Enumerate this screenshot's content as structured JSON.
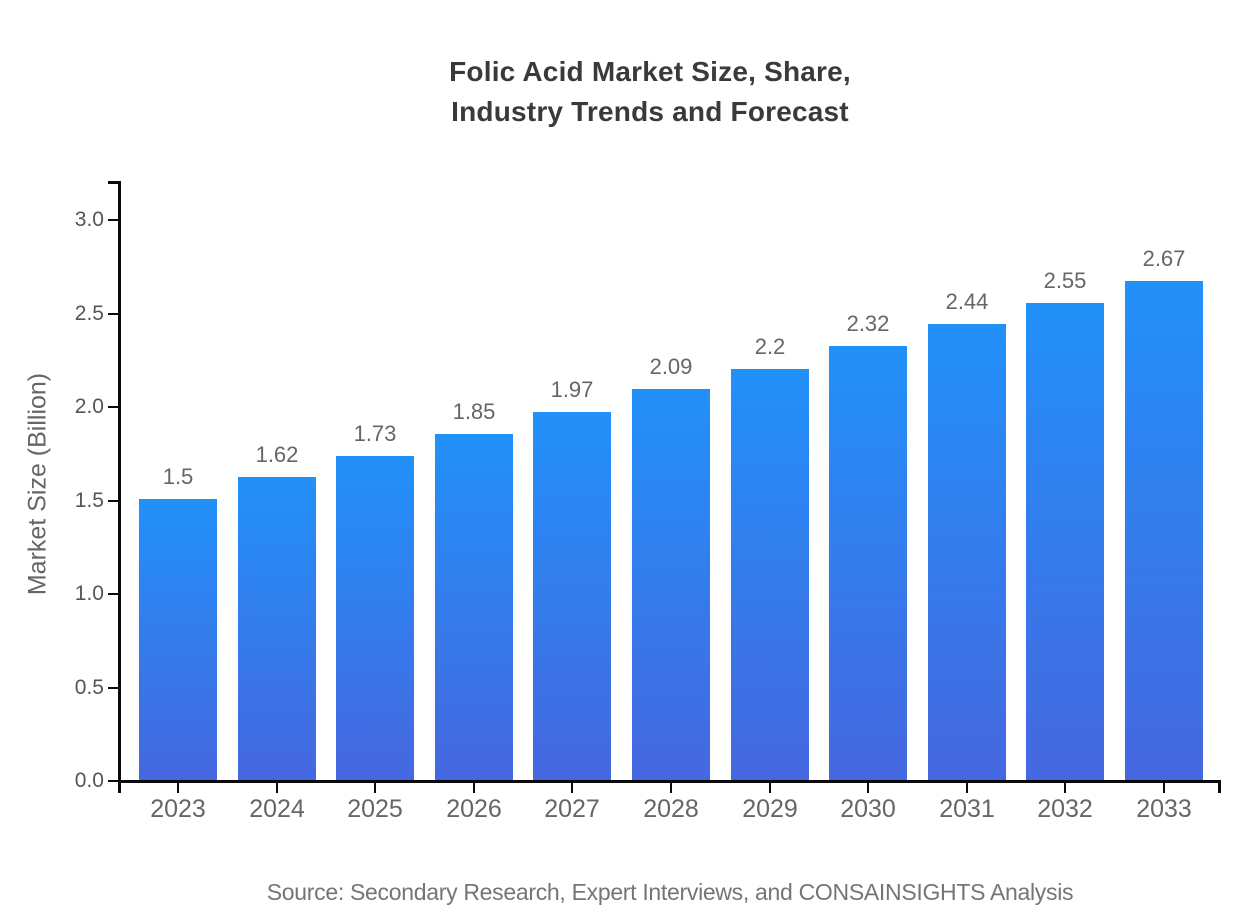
{
  "title": {
    "line1": "Folic Acid Market Size, Share,",
    "line2": "Industry Trends and Forecast"
  },
  "source": "Source: Secondary Research, Expert Interviews, and CONSAINSIGHTS Analysis",
  "chart_data": {
    "type": "bar",
    "title": "Folic Acid Market Size, Share, Industry Trends and Forecast",
    "categories": [
      "2023",
      "2024",
      "2025",
      "2026",
      "2027",
      "2028",
      "2029",
      "2030",
      "2031",
      "2032",
      "2033"
    ],
    "values": [
      1.5,
      1.62,
      1.73,
      1.85,
      1.97,
      2.09,
      2.2,
      2.32,
      2.44,
      2.55,
      2.67
    ],
    "data_labels": [
      "1.5",
      "1.62",
      "1.73",
      "1.85",
      "1.97",
      "2.09",
      "2.2",
      "2.32",
      "2.44",
      "2.55",
      "2.67"
    ],
    "xlabel": "",
    "ylabel": "Market Size (Billion)",
    "ylim": [
      0,
      3.2
    ],
    "yticks": [
      0.0,
      0.5,
      1.0,
      1.5,
      2.0,
      2.5,
      3.0
    ],
    "grid": false,
    "legend": null,
    "style": {
      "bar_gradient_top": "#2191f8",
      "bar_gradient_bottom": "#4667e0",
      "axis_color": "#0a0a0a",
      "tick_label_color": "#555555",
      "category_label_color": "#666666",
      "value_label_color": "#666666",
      "title_color": "#3a3a3a",
      "source_color": "#757575"
    }
  }
}
